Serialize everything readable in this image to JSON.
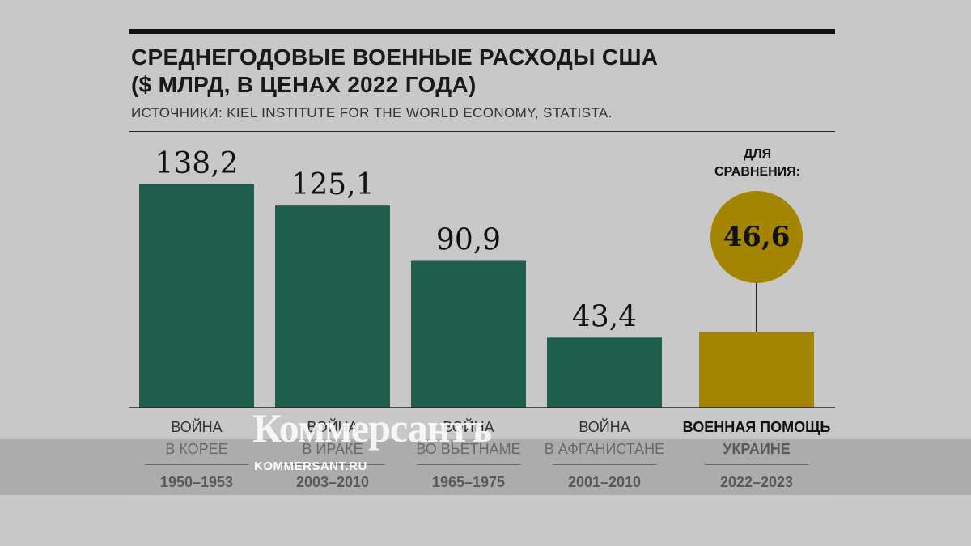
{
  "header": {
    "title_line1": "СРЕДНЕГОДОВЫЕ ВОЕННЫЕ РАСХОДЫ США",
    "title_line2": "($ МЛРД, В ЦЕНАХ 2022 ГОДА)",
    "source": "ИСТОЧНИКИ: KIEL INSTITUTE FOR THE WORLD ECONOMY, STATISTA."
  },
  "comparison": {
    "label_line1": "ДЛЯ",
    "label_line2": "СРАВНЕНИЯ:",
    "value_label": "46,6"
  },
  "watermark": {
    "logo": "Коммерсантъ",
    "url": "KOMMERSANT.RU"
  },
  "colors": {
    "war_bar": "#1f5d4c",
    "aid_bar": "#a38500",
    "background": "#c8c8c8"
  },
  "chart_data": {
    "type": "bar",
    "title": "СРЕДНЕГОДОВЫЕ ВОЕННЫЕ РАСХОДЫ США ($ МЛРД, В ЦЕНАХ 2022 ГОДА)",
    "categories": [
      {
        "line1": "ВОЙНА",
        "line2": "В КОРЕЕ",
        "period": "1950–1953"
      },
      {
        "line1": "ВОЙНА",
        "line2": "В ИРАКЕ",
        "period": "2003–2010"
      },
      {
        "line1": "ВОЙНА",
        "line2": "ВО ВЬЕТНАМЕ",
        "period": "1965–1975"
      },
      {
        "line1": "ВОЙНА",
        "line2": "В АФГАНИСТАНЕ",
        "period": "2001–2010"
      },
      {
        "line1": "ВОЕННАЯ ПОМОЩЬ",
        "line2": "УКРАИНЕ",
        "period": "2022–2023"
      }
    ],
    "values": [
      138.2,
      125.1,
      90.9,
      43.4,
      46.6
    ],
    "value_labels": [
      "138,2",
      "125,1",
      "90,9",
      "43,4",
      "46,6"
    ],
    "ylim": [
      0,
      140
    ],
    "grid": false
  }
}
